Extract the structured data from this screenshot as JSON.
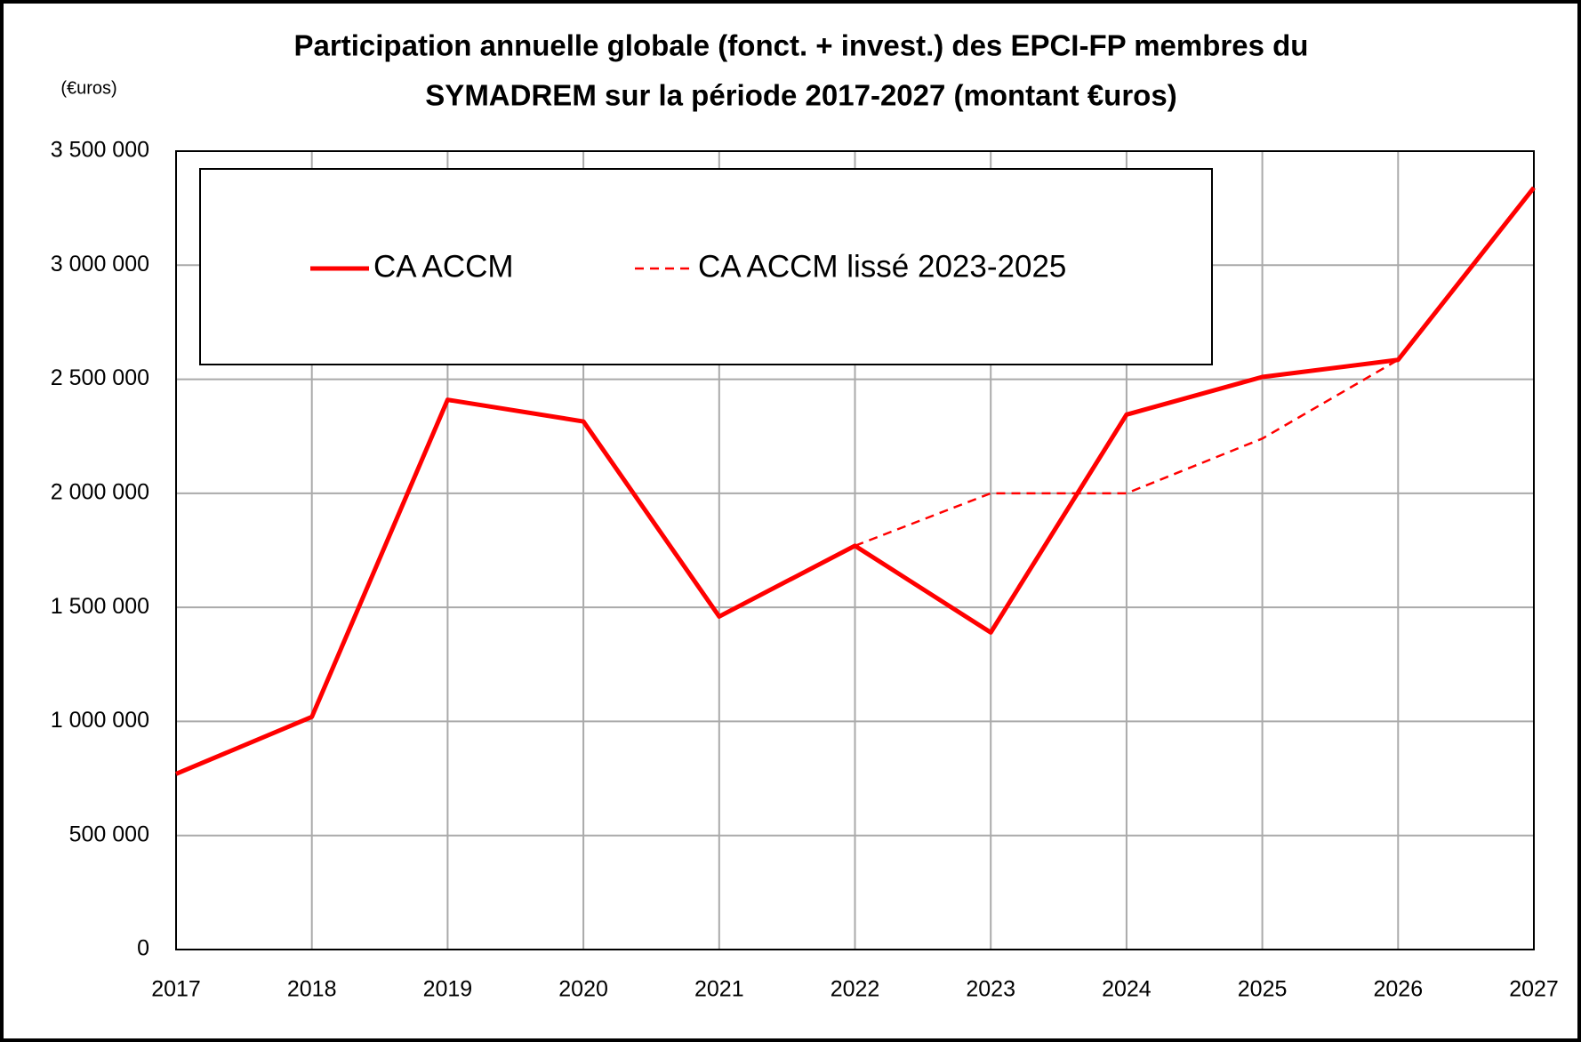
{
  "chart_data": {
    "type": "line",
    "title": [
      "Participation annuelle globale (fonct. + invest.) des EPCI-FP membres du",
      "SYMADREM sur la période 2017-2027 (montant €uros)"
    ],
    "y_label": "(€uros)",
    "x": [
      2017,
      2018,
      2019,
      2020,
      2021,
      2022,
      2023,
      2024,
      2025,
      2026,
      2027
    ],
    "series": [
      {
        "name": "CA ACCM",
        "color": "#ff0000",
        "dashed": false,
        "values": [
          770000,
          1020000,
          2410000,
          2315000,
          1460000,
          1770000,
          1390000,
          2345000,
          2510000,
          2585000,
          3340000
        ]
      },
      {
        "name": "CA ACCM lissé 2023-2025",
        "color": "#ff0000",
        "dashed": true,
        "values": [
          null,
          null,
          null,
          null,
          null,
          1770000,
          2000000,
          2000000,
          2240000,
          2585000,
          null
        ]
      }
    ],
    "xlim": [
      2017,
      2027
    ],
    "xticks": [
      2017,
      2018,
      2019,
      2020,
      2021,
      2022,
      2023,
      2024,
      2025,
      2026,
      2027
    ],
    "ylim": [
      0,
      3500000
    ],
    "yticks": [
      0,
      {
        "value": 500000,
        "label": "500 000"
      },
      {
        "value": 1000000,
        "label": "1 000 000"
      },
      {
        "value": 1500000,
        "label": "1 500 000"
      },
      {
        "value": 2000000,
        "label": "2 000 000"
      },
      {
        "value": 2500000,
        "label": "2 500 000"
      },
      {
        "value": 3000000,
        "label": "3 000 000"
      },
      {
        "value": 3500000,
        "label": "3 500 000"
      }
    ],
    "grid": true
  }
}
